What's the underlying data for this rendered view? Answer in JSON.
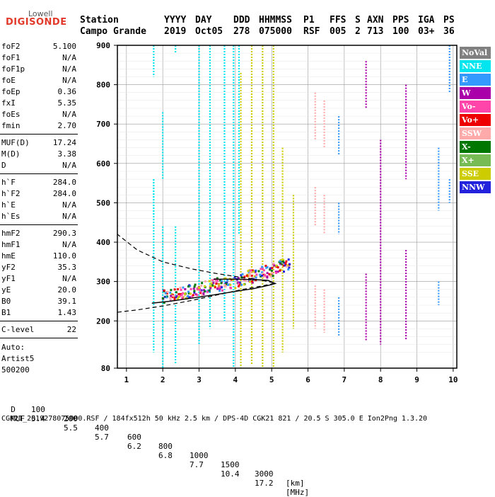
{
  "logo": {
    "line1": "Lowell",
    "line2": "DIGISONDE"
  },
  "header": {
    "columns": [
      {
        "label": "Station",
        "value": "Campo Grande"
      },
      {
        "label": "YYYY",
        "value": "2019"
      },
      {
        "label": "DAY",
        "value": "Oct05"
      },
      {
        "label": "DDD",
        "value": "278"
      },
      {
        "label": "HHMMSS",
        "value": "075000"
      },
      {
        "label": "P1",
        "value": "RSF"
      },
      {
        "label": "FFS",
        "value": "005"
      },
      {
        "label": "S",
        "value": "2"
      },
      {
        "label": "AXN",
        "value": "713"
      },
      {
        "label": "PPS",
        "value": "100"
      },
      {
        "label": "IGA",
        "value": "03+"
      },
      {
        "label": "PS",
        "value": "36"
      }
    ]
  },
  "params": [
    {
      "name": "foF2",
      "value": "5.100"
    },
    {
      "name": "foF1",
      "value": "N/A"
    },
    {
      "name": "foF1p",
      "value": "N/A"
    },
    {
      "name": "foE",
      "value": "N/A"
    },
    {
      "name": "foEp",
      "value": "0.36"
    },
    {
      "name": "fxI",
      "value": "5.35"
    },
    {
      "name": "foEs",
      "value": "N/A"
    },
    {
      "name": "fmin",
      "value": "2.70"
    },
    {
      "name": "MUF(D)",
      "value": "17.24"
    },
    {
      "name": "M(D)",
      "value": "3.38"
    },
    {
      "name": "D",
      "value": "N/A"
    },
    {
      "name": "h`F",
      "value": "284.0"
    },
    {
      "name": "h`F2",
      "value": "284.0"
    },
    {
      "name": "h`E",
      "value": "N/A"
    },
    {
      "name": "h`Es",
      "value": "N/A"
    },
    {
      "name": "hmF2",
      "value": "290.3"
    },
    {
      "name": "hmF1",
      "value": "N/A"
    },
    {
      "name": "hmE",
      "value": "110.0"
    },
    {
      "name": "yF2",
      "value": "35.3"
    },
    {
      "name": "yF1",
      "value": "N/A"
    },
    {
      "name": "yE",
      "value": "20.0"
    },
    {
      "name": "B0",
      "value": "39.1"
    },
    {
      "name": "B1",
      "value": "1.43"
    },
    {
      "name": "C-level",
      "value": "22"
    }
  ],
  "notes": {
    "auto": "Auto:",
    "artist": "Artist5",
    "version": "500200"
  },
  "legend": [
    {
      "label": "NoVal",
      "color": "#808080"
    },
    {
      "label": "NNE",
      "color": "#00e5ee"
    },
    {
      "label": "E",
      "color": "#3399ff"
    },
    {
      "label": "W",
      "color": "#aa00aa"
    },
    {
      "label": "Vo-",
      "color": "#ff44aa"
    },
    {
      "label": "Vo+",
      "color": "#ee0000"
    },
    {
      "label": "SSW",
      "color": "#ffaaaa"
    },
    {
      "label": "X-",
      "color": "#007700"
    },
    {
      "label": "X+",
      "color": "#77bb55"
    },
    {
      "label": "SSE",
      "color": "#cccc00"
    },
    {
      "label": "NNW",
      "color": "#2222dd"
    }
  ],
  "footer": {
    "d_label": "D",
    "d_values": [
      "100",
      "200",
      "400",
      "600",
      "800",
      "1000",
      "1500",
      "3000",
      "[km]"
    ],
    "muf_label": "MUF",
    "muf_values": [
      "5.4",
      "5.5",
      "5.7",
      "6.2",
      "6.8",
      "7.7",
      "10.4",
      "17.2",
      "[MHz]"
    ],
    "file_line": "CGK21_2019278075000.RSF / 184fx512h 50 kHz 2.5 km / DPS-4D CGK21 821 / 20.5 S 305.0 E Ion2Png 1.3.20"
  },
  "chart_data": {
    "type": "scatter",
    "xlim": [
      0.75,
      10.1
    ],
    "ylim": [
      80,
      900
    ],
    "x_ticks": [
      "1",
      "2",
      "3",
      "4",
      "5",
      "6",
      "7",
      "8",
      "9",
      "10"
    ],
    "y_ticks": [
      "80",
      "200",
      "300",
      "400",
      "500",
      "600",
      "700",
      "800",
      "900"
    ],
    "grid": true,
    "legend_position": "right",
    "vertical_traces": [
      {
        "color": "#00e5ee",
        "x": 1.75,
        "ranges": [
          [
            820,
            900
          ],
          [
            120,
            560
          ],
          [
            470,
            560
          ]
        ]
      },
      {
        "color": "#00e5ee",
        "x": 2.0,
        "ranges": [
          [
            560,
            730
          ],
          [
            200,
            440
          ],
          [
            80,
            200
          ]
        ]
      },
      {
        "color": "#00e5ee",
        "x": 2.35,
        "ranges": [
          [
            880,
            900
          ],
          [
            260,
            440
          ],
          [
            90,
            240
          ]
        ]
      },
      {
        "color": "#00e5ee",
        "x": 3.0,
        "ranges": [
          [
            140,
            900
          ]
        ]
      },
      {
        "color": "#00e5ee",
        "x": 3.3,
        "ranges": [
          [
            180,
            900
          ]
        ]
      },
      {
        "color": "#00e5ee",
        "x": 3.7,
        "ranges": [
          [
            200,
            900
          ]
        ]
      },
      {
        "color": "#00e5ee",
        "x": 3.95,
        "ranges": [
          [
            80,
            900
          ]
        ]
      },
      {
        "color": "#00e5ee",
        "x": 4.1,
        "ranges": [
          [
            420,
            900
          ]
        ]
      },
      {
        "color": "#cccc00",
        "x": 4.15,
        "ranges": [
          [
            80,
            830
          ]
        ]
      },
      {
        "color": "#cccc00",
        "x": 4.45,
        "ranges": [
          [
            90,
            900
          ]
        ]
      },
      {
        "color": "#cccc00",
        "x": 4.75,
        "ranges": [
          [
            80,
            900
          ]
        ]
      },
      {
        "color": "#cccc00",
        "x": 5.05,
        "ranges": [
          [
            80,
            900
          ]
        ]
      },
      {
        "color": "#cccc00",
        "x": 5.3,
        "ranges": [
          [
            120,
            640
          ]
        ]
      },
      {
        "color": "#cccc00",
        "x": 5.6,
        "ranges": [
          [
            180,
            520
          ]
        ]
      },
      {
        "color": "#ffaaaa",
        "x": 6.2,
        "ranges": [
          [
            660,
            780
          ],
          [
            440,
            540
          ],
          [
            180,
            290
          ]
        ]
      },
      {
        "color": "#ffaaaa",
        "x": 6.45,
        "ranges": [
          [
            640,
            760
          ],
          [
            420,
            520
          ],
          [
            170,
            280
          ]
        ]
      },
      {
        "color": "#3399ff",
        "x": 6.85,
        "ranges": [
          [
            620,
            720
          ],
          [
            420,
            500
          ],
          [
            160,
            260
          ]
        ]
      },
      {
        "color": "#aa00aa",
        "x": 7.6,
        "ranges": [
          [
            740,
            860
          ],
          [
            150,
            320
          ]
        ]
      },
      {
        "color": "#aa00aa",
        "x": 8.0,
        "ranges": [
          [
            140,
            660
          ]
        ]
      },
      {
        "color": "#aa00aa",
        "x": 8.7,
        "ranges": [
          [
            560,
            800
          ],
          [
            150,
            380
          ]
        ]
      },
      {
        "color": "#3399ff",
        "x": 9.6,
        "ranges": [
          [
            480,
            640
          ],
          [
            240,
            300
          ]
        ]
      },
      {
        "color": "#3399ff",
        "x": 9.9,
        "ranges": [
          [
            780,
            900
          ],
          [
            500,
            560
          ]
        ]
      }
    ],
    "trace_band": {
      "x": [
        2.0,
        2.5,
        3.0,
        3.5,
        4.0,
        4.5,
        5.0,
        5.5
      ],
      "y": [
        262,
        270,
        280,
        292,
        300,
        315,
        330,
        345
      ],
      "colors": [
        "#cccc00",
        "#ee0000",
        "#aa00aa",
        "#ff44aa",
        "#007700",
        "#3399ff",
        "#ffaaaa",
        "#2222dd"
      ]
    },
    "profile_solid": {
      "x": [
        1.7,
        2.2,
        2.8,
        3.4,
        4.0,
        4.5,
        4.9,
        5.1,
        4.9,
        4.5,
        4.0,
        3.4
      ],
      "y": [
        245,
        250,
        258,
        266,
        275,
        282,
        290,
        295,
        303,
        305,
        306,
        306
      ]
    },
    "profile_dashed": {
      "x": [
        0.75,
        1.3,
        2.0,
        2.8,
        3.5,
        4.2,
        4.8,
        5.1,
        4.8,
        4.2,
        3.5,
        2.8,
        2.0,
        1.3,
        0.75
      ],
      "y": [
        222,
        228,
        238,
        252,
        266,
        280,
        290,
        296,
        302,
        310,
        320,
        332,
        350,
        380,
        420
      ]
    }
  }
}
